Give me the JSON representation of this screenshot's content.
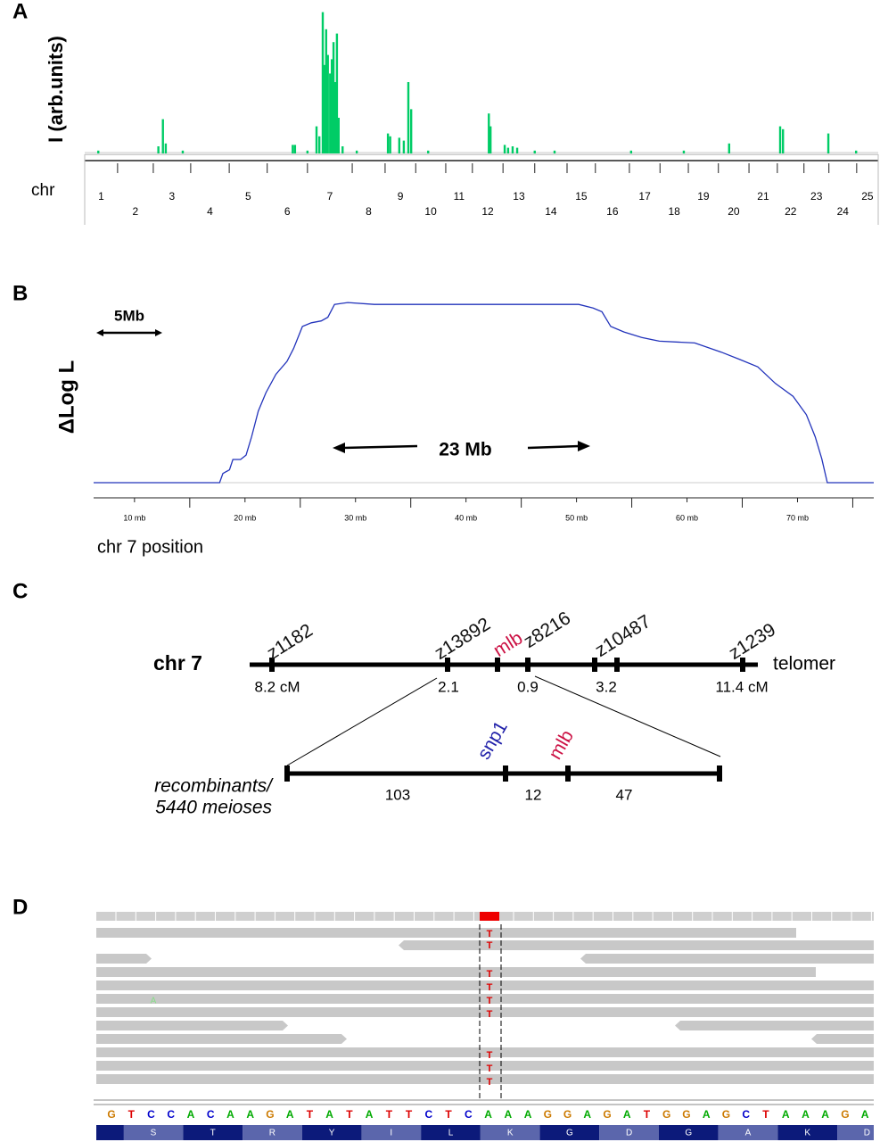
{
  "panels": [
    "A",
    "B",
    "C",
    "D"
  ],
  "chart_data": [
    {
      "type": "bar",
      "y_label": "I (arb.units)",
      "x_label": "chr",
      "categories": [
        "1",
        "2",
        "3",
        "4",
        "5",
        "6",
        "7",
        "8",
        "9",
        "10",
        "11",
        "12",
        "13",
        "14",
        "15",
        "16",
        "17",
        "18",
        "19",
        "20",
        "21",
        "22",
        "23",
        "24",
        "25"
      ],
      "x": [
        24,
        130,
        138,
        143,
        173,
        367,
        371,
        393,
        409,
        414,
        420,
        423,
        426,
        429,
        433,
        436,
        439,
        442,
        445,
        448,
        455,
        480,
        535,
        539,
        555,
        563,
        571,
        576,
        606,
        713,
        716,
        741,
        747,
        755,
        763,
        794,
        829,
        964,
        1057,
        1137,
        1227,
        1232,
        1312,
        1361
      ],
      "values": [
        2,
        5,
        24,
        7,
        2,
        6,
        6,
        2,
        19,
        12,
        99,
        62,
        87,
        69,
        56,
        66,
        78,
        50,
        84,
        25,
        5,
        2,
        14,
        12,
        11,
        9,
        50,
        31,
        2,
        28,
        19,
        6,
        4,
        5,
        4,
        2,
        2,
        2,
        2,
        7,
        19,
        17,
        14,
        2
      ],
      "color": "#00cc66",
      "xlim": [
        0,
        1400
      ],
      "ylim": [
        0,
        100
      ],
      "minor_xticks": [
        58,
        121,
        187,
        255,
        322,
        393,
        472,
        530,
        584,
        637,
        684,
        738,
        794,
        851,
        901,
        961,
        1015,
        1065,
        1118,
        1172,
        1222,
        1269,
        1313,
        1362
      ]
    },
    {
      "type": "line",
      "y_label": "ΔLog L",
      "x_label": "chr 7 position",
      "color": "#2233bb",
      "x": [
        6.3,
        17.7,
        18.0,
        18.6,
        18.9,
        19.6,
        20.1,
        20.6,
        21.2,
        21.9,
        22.8,
        23.8,
        24.4,
        25.2,
        26.0,
        26.9,
        27.5,
        28.1,
        29.3,
        31.7,
        34.9,
        38.1,
        41.4,
        46.2,
        50.2,
        51.5,
        52.3,
        53.1,
        54.3,
        55.9,
        57.5,
        60.7,
        63.1,
        64.8,
        66.4,
        68.0,
        69.6,
        70.8,
        71.6,
        72.2,
        72.7,
        76.9
      ],
      "values": [
        0,
        0,
        5,
        7,
        12.6,
        12.6,
        15,
        25,
        39,
        49,
        59,
        66,
        73,
        85,
        87,
        88,
        90,
        97,
        98,
        97,
        97,
        97,
        97,
        97,
        97,
        95,
        93,
        85,
        82,
        79,
        77,
        76,
        71,
        67,
        63,
        54,
        47,
        37,
        25,
        13,
        0,
        0
      ],
      "xlim": [
        6.3,
        76.9
      ],
      "ylim": [
        0,
        100
      ],
      "xticks": [
        {
          "value": 10,
          "label": "10 mb"
        },
        {
          "value": 20,
          "label": "20 mb"
        },
        {
          "value": 30,
          "label": "30 mb"
        },
        {
          "value": 40,
          "label": "40 mb"
        },
        {
          "value": 50,
          "label": "50 mb"
        },
        {
          "value": 60,
          "label": "60 mb"
        },
        {
          "value": 70,
          "label": "70 mb"
        }
      ],
      "minor_xticks": [
        15,
        25,
        35,
        45,
        55,
        65,
        75
      ],
      "annotations": [
        "5Mb",
        "23 Mb"
      ]
    }
  ],
  "genetic_map": {
    "chromosome": "chr 7",
    "end_label": "telomer",
    "markers": [
      {
        "name": "z1182",
        "color": "#111111"
      },
      {
        "name": "z13892",
        "color": "#111111"
      },
      {
        "name": "mlb",
        "color": "#cc1144"
      },
      {
        "name": "z8216",
        "color": "#111111"
      },
      {
        "name": "z10487",
        "color": "#111111"
      },
      {
        "name": "z1239",
        "color": "#111111"
      }
    ],
    "distances": [
      "8.2 cM",
      "2.1",
      "0.9",
      "3.2",
      "11.4 cM"
    ],
    "fine_markers": [
      {
        "name": "snp1",
        "color": "#2222aa"
      },
      {
        "name": "mlb",
        "color": "#cc1144"
      }
    ],
    "recombinants": [
      "103",
      "12",
      "47"
    ],
    "caption": [
      "recombinants/",
      "5440 meioses"
    ]
  },
  "alignment": {
    "reference": [
      "G",
      "T",
      "C",
      "C",
      "A",
      "C",
      "A",
      "A",
      "G",
      "A",
      "T",
      "A",
      "T",
      "A",
      "T",
      "T",
      "C",
      "T",
      "C",
      "A",
      "A",
      "A",
      "G",
      "G",
      "A",
      "G",
      "A",
      "T",
      "G",
      "G",
      "A",
      "G",
      "C",
      "T",
      "A",
      "A",
      "A",
      "G",
      "A"
    ],
    "amino_acids": [
      "S",
      "T",
      "R",
      "Y",
      "I",
      "L",
      "K",
      "G",
      "D",
      "G",
      "A",
      "K",
      "D"
    ],
    "variant_bases": [
      "T",
      "T",
      "T",
      "T",
      "T",
      "T",
      "T",
      "T",
      "T"
    ],
    "mismatch": "A",
    "base_colors": {
      "A": "#00aa00",
      "C": "#0000cc",
      "G": "#cc7a00",
      "T": "#dd0000"
    }
  }
}
